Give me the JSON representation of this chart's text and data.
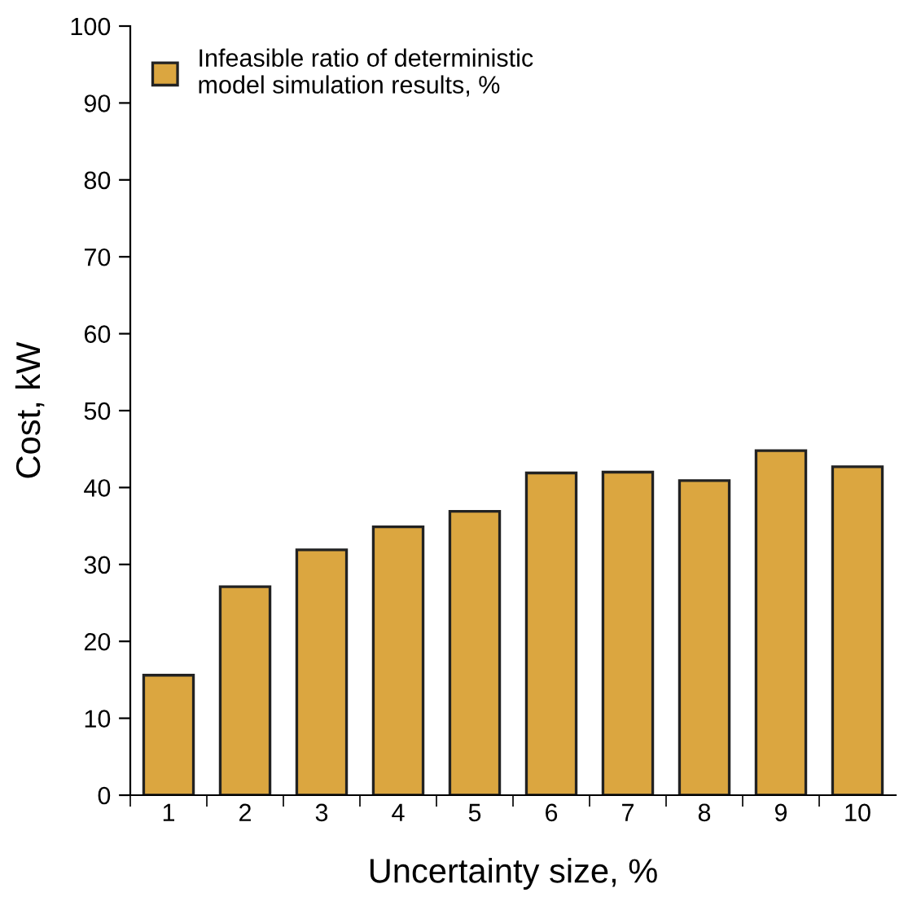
{
  "chart_data": {
    "type": "bar",
    "xlabel": "Uncertainty size, %",
    "ylabel": "Cost, kW",
    "categories": [
      "1",
      "2",
      "3",
      "4",
      "5",
      "6",
      "7",
      "8",
      "9",
      "10"
    ],
    "series": [
      {
        "name": "Infeasible ratio of deterministic\nmodel simulation results, %",
        "color": "#dba640",
        "values": [
          15.6,
          27.1,
          31.9,
          34.9,
          36.9,
          41.9,
          42.0,
          40.9,
          44.8,
          42.7
        ]
      }
    ],
    "ylim": [
      0,
      100
    ],
    "yticks": [
      0,
      10,
      20,
      30,
      40,
      50,
      60,
      70,
      80,
      90,
      100
    ],
    "grid": false,
    "legend": "top left"
  }
}
